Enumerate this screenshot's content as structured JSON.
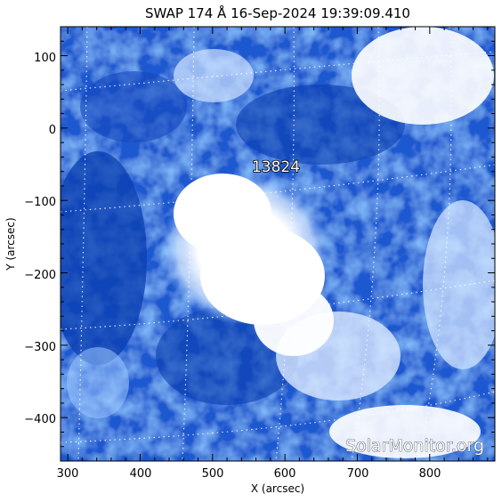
{
  "title": "SWAP 174 Å 16-Sep-2024 19:39:09.410",
  "x_axis": {
    "label": "X (arcsec)",
    "ticks": [
      "300",
      "400",
      "500",
      "600",
      "700",
      "800"
    ],
    "range": [
      290,
      890
    ]
  },
  "y_axis": {
    "label": "Y (arcsec)",
    "ticks": [
      "100",
      "0",
      "−100",
      "−200",
      "−300",
      "−400"
    ],
    "range": [
      -460,
      140
    ]
  },
  "active_region": {
    "number": "13824",
    "x": 595,
    "y": -55
  },
  "watermark": "SolarMonitor.org",
  "colors": {
    "dark_blue": "#0a3fb0",
    "mid_blue": "#2f6fe0",
    "light_blue": "#8ec0ff",
    "bright": "#ffffff"
  }
}
